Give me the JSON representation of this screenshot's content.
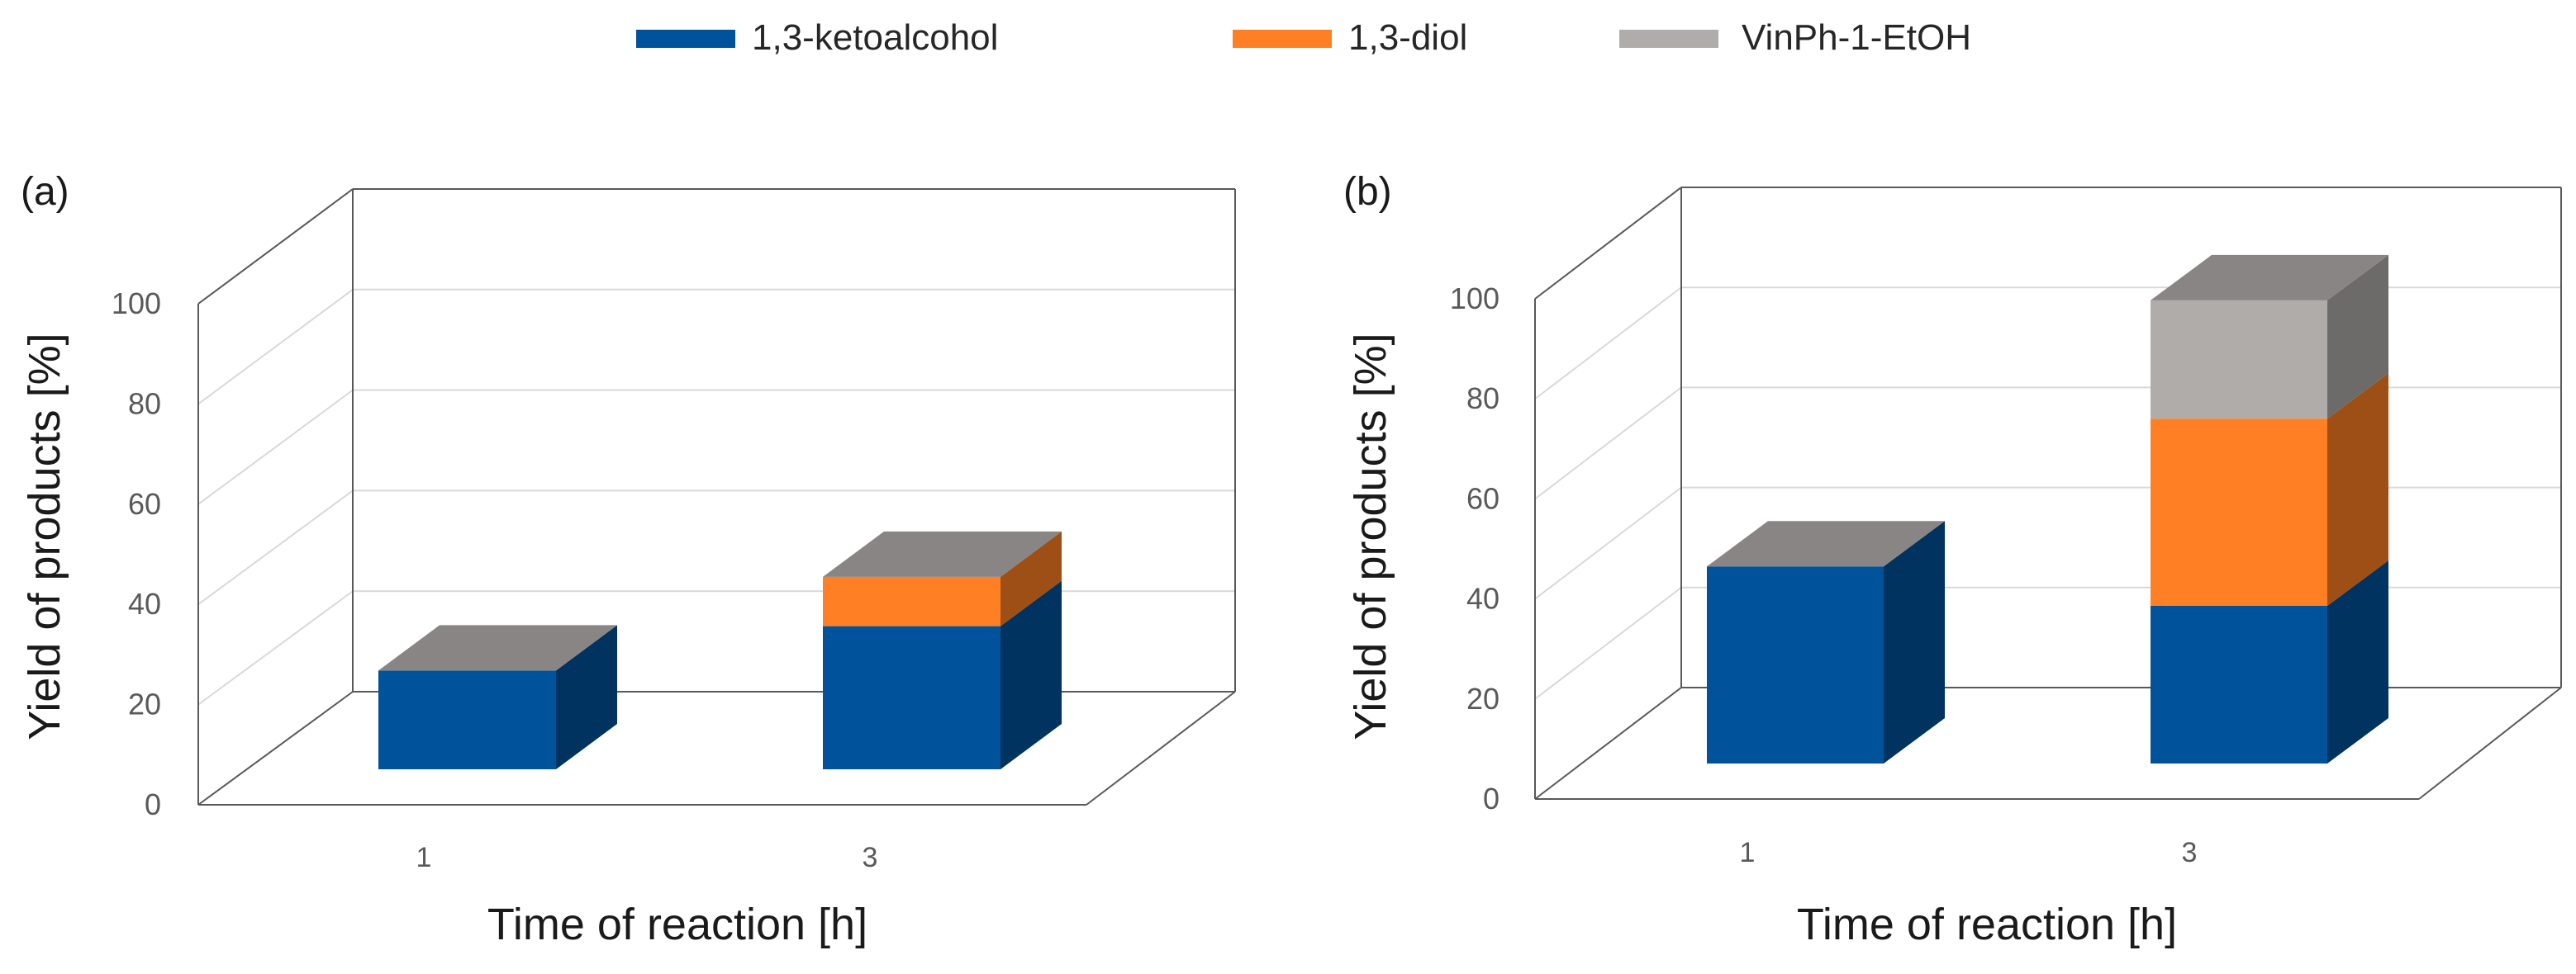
{
  "legend": [
    {
      "label": "1,3-ketoalcohol",
      "color": "#00539a"
    },
    {
      "label": "1,3-diol",
      "color": "#ff7f24"
    },
    {
      "label": "VinPh-1-EtOH",
      "color": "#afaca9"
    }
  ],
  "chart_data": [
    {
      "type": "bar",
      "stacked": true,
      "panel_label": "(a)",
      "xlabel": "Time of reaction [h]",
      "ylabel": "Yield of products [%]",
      "ylim": [
        0,
        100
      ],
      "yticks": [
        "0",
        "20",
        "40",
        "60",
        "80",
        "100"
      ],
      "categories": [
        "1",
        "3"
      ],
      "series": [
        {
          "name": "1,3-ketoalcohol",
          "values": [
            20,
            29
          ]
        },
        {
          "name": "1,3-diol",
          "values": [
            0,
            10
          ]
        },
        {
          "name": "VinPh-1-EtOH",
          "values": [
            0,
            0
          ]
        }
      ]
    },
    {
      "type": "bar",
      "stacked": true,
      "panel_label": "(b)",
      "xlabel": "Time of reaction [h]",
      "ylabel": "Yield of products [%]",
      "ylim": [
        0,
        100
      ],
      "yticks": [
        "0",
        "20",
        "40",
        "60",
        "80",
        "100"
      ],
      "categories": [
        "1",
        "3"
      ],
      "series": [
        {
          "name": "1,3-ketoalcohol",
          "values": [
            40,
            32
          ]
        },
        {
          "name": "1,3-diol",
          "values": [
            0,
            38
          ]
        },
        {
          "name": "VinPh-1-EtOH",
          "values": [
            0,
            24
          ]
        }
      ]
    }
  ]
}
